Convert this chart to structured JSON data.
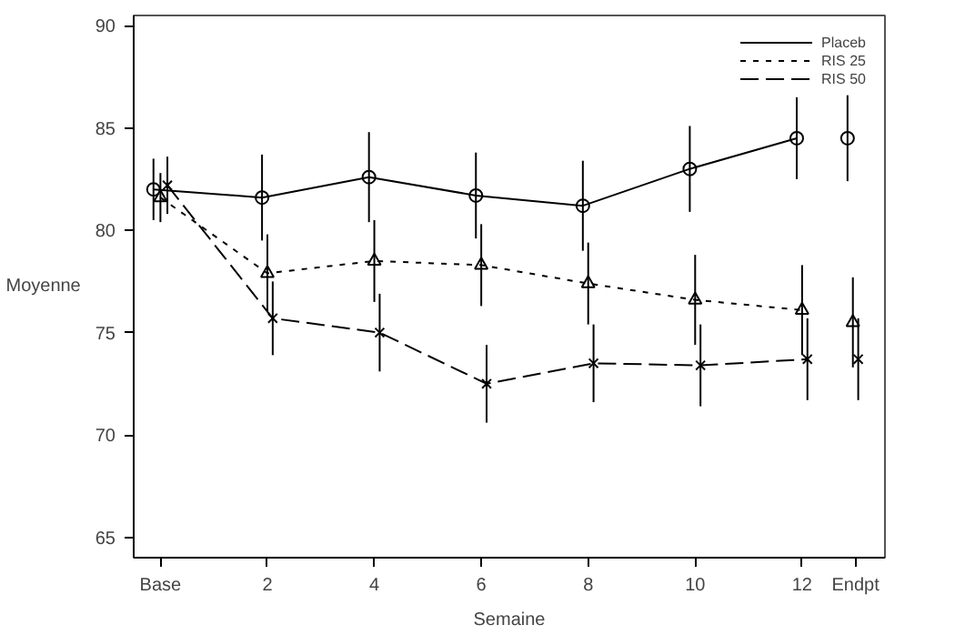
{
  "chart_data": {
    "type": "line",
    "xlabel": "Semaine",
    "ylabel": "Moyenne",
    "xlim": [
      -0.5,
      13.55
    ],
    "ylim": [
      64,
      90.5
    ],
    "xticks": [
      {
        "value": 0,
        "label": "Base"
      },
      2,
      4,
      6,
      8,
      10,
      12,
      {
        "value": 13,
        "label": "Endpt"
      }
    ],
    "yticks": [
      65,
      70,
      75,
      80,
      85,
      90
    ],
    "grid": false,
    "legend": "top right",
    "series": [
      {
        "name": "Placeb",
        "color": "#000000",
        "marker": "circle",
        "line_style": "solid",
        "x": [
          -0.13,
          1.9,
          3.9,
          5.9,
          7.9,
          9.9,
          11.9
        ],
        "values": [
          82.0,
          81.6,
          82.6,
          81.7,
          81.2,
          83.0,
          84.5
        ],
        "errors": [
          1.5,
          2.1,
          2.2,
          2.1,
          2.2,
          2.1,
          2.0
        ]
      },
      {
        "name": "RIS 25",
        "color": "#000000",
        "marker": "triangle",
        "line_style": "dotted",
        "x": [
          0,
          2.0,
          4.0,
          6.0,
          8.0,
          10.0,
          12.0
        ],
        "values": [
          81.6,
          77.9,
          78.5,
          78.3,
          77.4,
          76.6,
          76.1
        ],
        "errors": [
          1.2,
          1.9,
          2.0,
          2.0,
          2.0,
          2.2,
          2.2
        ]
      },
      {
        "name": "RIS 50",
        "color": "#000000",
        "marker": "cross",
        "line_style": "dashed",
        "x": [
          0.13,
          2.1,
          4.1,
          6.1,
          8.1,
          10.1,
          12.1
        ],
        "values": [
          82.2,
          75.7,
          75.0,
          72.5,
          73.5,
          73.4,
          73.7
        ],
        "errors": [
          1.4,
          1.8,
          1.9,
          1.9,
          1.9,
          2.0,
          2.0
        ]
      },
      {
        "type": "scatter",
        "color": "#000000",
        "marker": "circle",
        "x": [
          12.85
        ],
        "values": [
          84.5
        ],
        "errors": [
          2.1
        ]
      },
      {
        "type": "scatter",
        "color": "#000000",
        "marker": "triangle",
        "x": [
          12.95
        ],
        "values": [
          75.5
        ],
        "errors": [
          2.2
        ]
      },
      {
        "type": "scatter",
        "color": "#000000",
        "marker": "cross",
        "x": [
          13.05
        ],
        "values": [
          73.7
        ],
        "errors": [
          2.0
        ]
      }
    ]
  }
}
